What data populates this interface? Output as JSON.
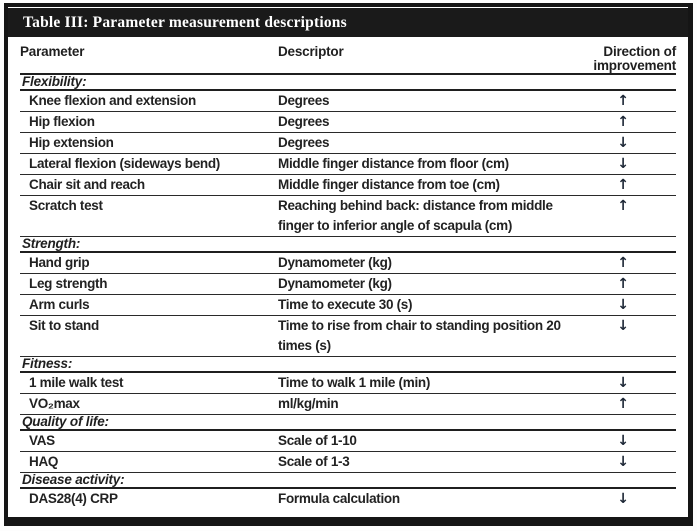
{
  "title": "Table III: Parameter measurement descriptions",
  "columns": {
    "parameter": "Parameter",
    "descriptor": "Descriptor",
    "direction_line1": "Direction of",
    "direction_line2": "improvement"
  },
  "arrow_icons": {
    "up": "↑",
    "down": "↓"
  },
  "colors": {
    "frame": "#151515",
    "title_bar": "#1a1a1a",
    "title_text": "#ffffff",
    "body_text": "#1f1f1f",
    "arrow": "#1d2736"
  },
  "sections": [
    {
      "label": "Flexibility:",
      "rows": [
        {
          "parameter": "Knee flexion and extension",
          "descriptor": "Degrees",
          "direction": "up"
        },
        {
          "parameter": "Hip flexion",
          "descriptor": "Degrees",
          "direction": "up"
        },
        {
          "parameter": "Hip extension",
          "descriptor": "Degrees",
          "direction": "down"
        },
        {
          "parameter": "Lateral flexion (sideways bend)",
          "descriptor": "Middle finger distance from floor (cm)",
          "direction": "down"
        },
        {
          "parameter": "Chair sit and reach",
          "descriptor": "Middle finger distance from toe (cm)",
          "direction": "up"
        },
        {
          "parameter": "Scratch test",
          "descriptor": "Reaching behind back: distance from middle",
          "descriptor_line2": "finger to inferior angle of scapula (cm)",
          "direction": "up"
        }
      ]
    },
    {
      "label": "Strength:",
      "rows": [
        {
          "parameter": "Hand grip",
          "descriptor": "Dynamometer (kg)",
          "direction": "up"
        },
        {
          "parameter": "Leg strength",
          "descriptor": "Dynamometer (kg)",
          "direction": "up"
        },
        {
          "parameter": "Arm curls",
          "descriptor": "Time to execute 30 (s)",
          "direction": "down"
        },
        {
          "parameter": "Sit to stand",
          "descriptor": "Time to rise from chair to standing position 20 times (s)",
          "direction": "down"
        }
      ]
    },
    {
      "label": "Fitness:",
      "rows": [
        {
          "parameter": "1 mile walk test",
          "descriptor": "Time to walk 1 mile (min)",
          "direction": "down"
        },
        {
          "parameter": "VO₂max",
          "descriptor": "ml/kg/min",
          "direction": "up"
        }
      ]
    },
    {
      "label": "Quality of life:",
      "rows": [
        {
          "parameter": "VAS",
          "descriptor": "Scale of 1-10",
          "direction": "down"
        },
        {
          "parameter": "HAQ",
          "descriptor": "Scale of 1-3",
          "direction": "down"
        }
      ]
    },
    {
      "label": "Disease activity:",
      "rows": [
        {
          "parameter": "DAS28(4) CRP",
          "descriptor": "Formula calculation",
          "direction": "down"
        }
      ]
    }
  ]
}
